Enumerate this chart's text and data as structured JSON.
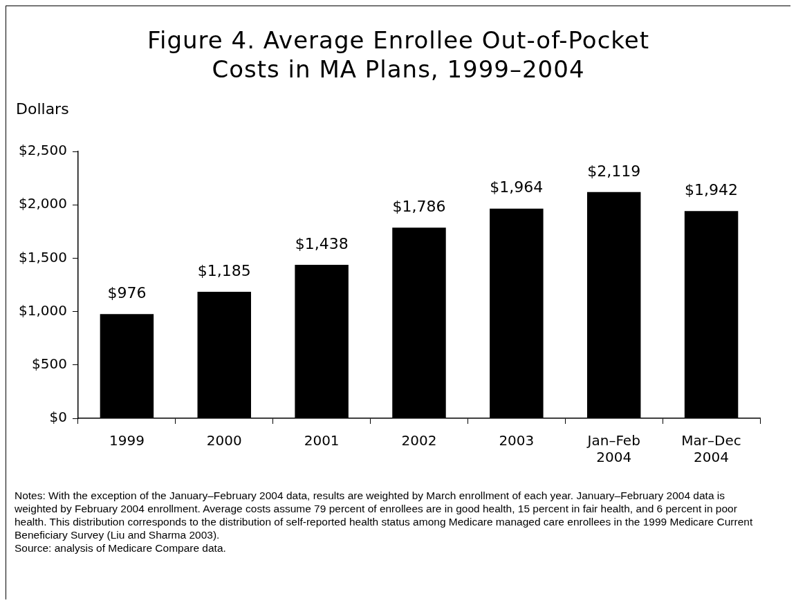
{
  "chart_data": {
    "type": "bar",
    "title": "Figure 4. Average Enrollee Out-of-Pocket Costs in MA Plans, 1999–2004",
    "ylabel": "Dollars",
    "categories": [
      "1999",
      "2000",
      "2001",
      "2002",
      "2003",
      "Jan–Feb 2004",
      "Mar–Dec 2004"
    ],
    "values": [
      976,
      1185,
      1438,
      1786,
      1964,
      2119,
      1942
    ],
    "value_labels": [
      "$976",
      "$1,185",
      "$1,438",
      "$1,786",
      "$1,964",
      "$2,119",
      "$1,942"
    ],
    "color": "#000000",
    "ylim": [
      0,
      2500
    ],
    "yticks": [
      {
        "value": 0,
        "label": "$0"
      },
      {
        "value": 500,
        "label": "$500"
      },
      {
        "value": 1000,
        "label": "$1,000"
      },
      {
        "value": 1500,
        "label": "$1,500"
      },
      {
        "value": 2000,
        "label": "$2,000"
      },
      {
        "value": 2500,
        "label": "$2,500"
      }
    ],
    "grid": false,
    "legend": false,
    "annotations": [
      "Notes: With the exception of the January–February 2004 data, results are weighted by March enrollment of each year. January–February 2004 data is weighted by February 2004 enrollment. Average costs assume 79 percent of enrollees are in good health, 15 percent in fair health, and 6 percent in poor health. This distribution corresponds to the distribution of self-reported health status among Medicare managed care enrollees in the 1999 Medicare Current Beneficiary Survey (Liu and Sharma 2003).",
      "Source: analysis of Medicare Compare data."
    ]
  }
}
